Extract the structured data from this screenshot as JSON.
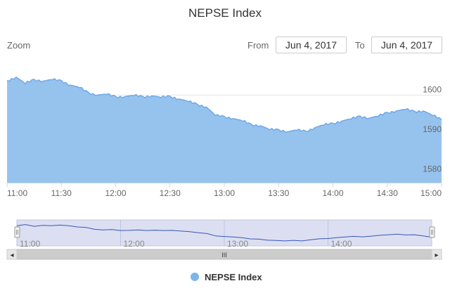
{
  "chart_data": {
    "type": "area",
    "title": "NEPSE Index",
    "series": [
      {
        "name": "NEPSE Index",
        "x": [
          "11:00",
          "11:05",
          "11:10",
          "11:15",
          "11:20",
          "11:25",
          "11:30",
          "11:35",
          "11:40",
          "11:45",
          "11:50",
          "11:55",
          "12:00",
          "12:05",
          "12:10",
          "12:15",
          "12:20",
          "12:25",
          "12:30",
          "12:35",
          "12:40",
          "12:45",
          "12:50",
          "12:55",
          "13:00",
          "13:05",
          "13:10",
          "13:15",
          "13:20",
          "13:25",
          "13:30",
          "13:35",
          "13:40",
          "13:45",
          "13:50",
          "13:55",
          "14:00",
          "14:05",
          "14:10",
          "14:15",
          "14:20",
          "14:25",
          "14:30",
          "14:35",
          "14:40",
          "14:45",
          "14:50",
          "14:55",
          "15:00"
        ],
        "values": [
          1603.5,
          1604.5,
          1603,
          1603.8,
          1603.5,
          1604,
          1603.5,
          1602.5,
          1602,
          1600.5,
          1600,
          1600.3,
          1599.5,
          1599.6,
          1600,
          1599.5,
          1599.8,
          1599.5,
          1599.6,
          1599,
          1598.5,
          1597.6,
          1597,
          1595,
          1594.5,
          1594.1,
          1593.6,
          1592.5,
          1592.3,
          1591.4,
          1591.2,
          1590.8,
          1591.3,
          1590.8,
          1591.8,
          1592.6,
          1592.8,
          1593.5,
          1594.1,
          1594.6,
          1594.2,
          1594.8,
          1595.5,
          1596,
          1596.5,
          1595.8,
          1596,
          1595,
          1593.8
        ]
      }
    ],
    "xlabel": "",
    "ylabel": "",
    "ylim": [
      1578,
      1608
    ],
    "y_ticks": [
      1580,
      1590,
      1600
    ],
    "x_ticks": [
      "11:00",
      "11:30",
      "12:00",
      "12:30",
      "13:00",
      "13:30",
      "14:00",
      "14:30",
      "15:00"
    ],
    "navigator_ticks": [
      "11:00",
      "12:00",
      "13:00",
      "14:00"
    ],
    "grid": true,
    "legend": "bottom-center"
  },
  "range_selector": {
    "zoom_label": "Zoom",
    "from_label": "From",
    "from_value": "Jun 4, 2017",
    "to_label": "To",
    "to_value": "Jun 4, 2017"
  },
  "navigator": {
    "scroll_grip": "III",
    "left_arrow": "◂",
    "right_arrow": "▸"
  },
  "colors": {
    "area_fill": "#96c3ee",
    "line": "#6fa8e6",
    "navigator_line": "#3557b7",
    "navigator_mask": "#d8dcf0",
    "grid": "#e6e6e6",
    "legend_marker": "#7cb5ec"
  }
}
